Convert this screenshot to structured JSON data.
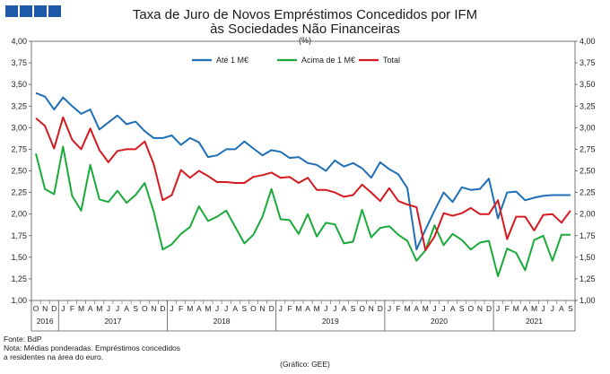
{
  "header": {
    "title_line1": "Taxa de Juro de Novos Empréstimos Concedidos por IFM",
    "title_line2": "às Sociedades Não Financeiras",
    "unit": "(%)"
  },
  "notes": {
    "source": "Fonte: BdP",
    "note_line1": "Nota: Médias ponderadas.  Empréstimos concedidos",
    "note_line2": "a residentes na área do euro.",
    "credit": "(Gráfico: GEE)"
  },
  "colors": {
    "blue": "#1f6fb6",
    "green": "#1aaa3a",
    "red": "#d6191f",
    "logo": "#1f5aa8"
  },
  "chart_data": {
    "type": "line",
    "title": "Taxa de Juro de Novos Empréstimos Concedidos por IFM às Sociedades Não Financeiras",
    "ylabel": "(%)",
    "ylim": [
      1.0,
      4.0
    ],
    "ytick_step": 0.25,
    "ytick_labels": [
      "1,00",
      "1,25",
      "1,50",
      "1,75",
      "2,00",
      "2,25",
      "2,50",
      "2,75",
      "3,00",
      "3,25",
      "3,50",
      "3,75",
      "4,00"
    ],
    "months": [
      "O",
      "N",
      "D",
      "J",
      "F",
      "M",
      "A",
      "M",
      "J",
      "J",
      "A",
      "S",
      "O",
      "N",
      "D",
      "J",
      "F",
      "M",
      "A",
      "M",
      "J",
      "J",
      "A",
      "S",
      "O",
      "N",
      "D",
      "J",
      "F",
      "M",
      "A",
      "M",
      "J",
      "J",
      "A",
      "S",
      "O",
      "N",
      "D",
      "J",
      "F",
      "M",
      "A",
      "M",
      "J",
      "J",
      "A",
      "S",
      "O",
      "N",
      "D",
      "J",
      "F",
      "M",
      "A",
      "M",
      "J",
      "J",
      "A",
      "S"
    ],
    "years": [
      {
        "label": "2016",
        "start": 0,
        "end": 2
      },
      {
        "label": "2017",
        "start": 3,
        "end": 14
      },
      {
        "label": "2018",
        "start": 15,
        "end": 26
      },
      {
        "label": "2019",
        "start": 27,
        "end": 38
      },
      {
        "label": "2020",
        "start": 39,
        "end": 50
      },
      {
        "label": "2021",
        "start": 51,
        "end": 59
      }
    ],
    "legend_position": "top-center",
    "series": [
      {
        "name": "Até 1 M€",
        "color": "#1f6fb6",
        "values": [
          3.4,
          3.36,
          3.21,
          3.35,
          3.25,
          3.16,
          3.21,
          2.98,
          3.06,
          3.14,
          3.04,
          3.07,
          2.96,
          2.88,
          2.88,
          2.91,
          2.8,
          2.88,
          2.83,
          2.66,
          2.68,
          2.75,
          2.75,
          2.84,
          2.76,
          2.68,
          2.74,
          2.72,
          2.65,
          2.66,
          2.59,
          2.57,
          2.5,
          2.62,
          2.55,
          2.59,
          2.53,
          2.42,
          2.6,
          2.52,
          2.46,
          2.3,
          1.59,
          1.82,
          2.04,
          2.25,
          2.14,
          2.31,
          2.28,
          2.29,
          2.41,
          1.95,
          2.25,
          2.26,
          2.16,
          2.19,
          2.21,
          2.22,
          2.22,
          2.22
        ]
      },
      {
        "name": "Acima de 1 M€",
        "color": "#1aaa3a",
        "values": [
          2.7,
          2.29,
          2.23,
          2.78,
          2.21,
          2.04,
          2.57,
          2.17,
          2.14,
          2.27,
          2.13,
          2.22,
          2.36,
          2.03,
          1.59,
          1.65,
          1.77,
          1.85,
          2.09,
          1.92,
          1.97,
          2.04,
          1.85,
          1.66,
          1.76,
          1.97,
          2.29,
          1.94,
          1.93,
          1.77,
          2.0,
          1.74,
          1.9,
          1.88,
          1.66,
          1.68,
          2.05,
          1.73,
          1.84,
          1.86,
          1.76,
          1.69,
          1.46,
          1.58,
          1.87,
          1.64,
          1.77,
          1.7,
          1.59,
          1.67,
          1.69,
          1.28,
          1.6,
          1.55,
          1.35,
          1.7,
          1.75,
          1.46,
          1.76,
          1.76
        ]
      },
      {
        "name": "Total",
        "color": "#d6191f",
        "values": [
          3.11,
          3.02,
          2.76,
          3.12,
          2.86,
          2.75,
          2.99,
          2.74,
          2.6,
          2.73,
          2.75,
          2.75,
          2.84,
          2.58,
          2.16,
          2.22,
          2.51,
          2.42,
          2.5,
          2.44,
          2.37,
          2.37,
          2.36,
          2.36,
          2.43,
          2.45,
          2.48,
          2.42,
          2.43,
          2.36,
          2.42,
          2.28,
          2.28,
          2.25,
          2.2,
          2.22,
          2.34,
          2.25,
          2.15,
          2.3,
          2.15,
          2.11,
          2.08,
          1.58,
          1.74,
          2.01,
          1.98,
          2.01,
          2.07,
          2.0,
          2.0,
          2.16,
          1.71,
          1.97,
          1.97,
          1.81,
          1.99,
          2.0,
          1.9,
          2.04
        ]
      }
    ]
  }
}
